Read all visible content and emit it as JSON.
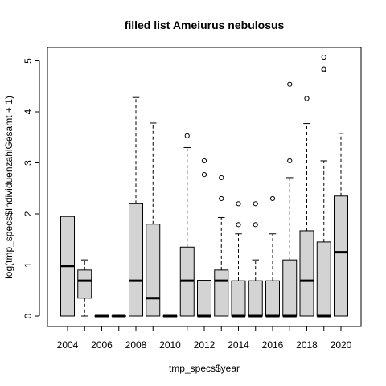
{
  "chart_data": {
    "type": "boxplot",
    "title": "filled list Ameiurus nebulosus",
    "xlabel": "tmp_specs$year",
    "ylabel": "log(tmp_specs$IndividuenzahlGesamt + 1)",
    "y_ticks": [
      0,
      1,
      2,
      3,
      4,
      5
    ],
    "x_tick_labels": [
      "2004",
      "2006",
      "2008",
      "2010",
      "2012",
      "2014",
      "2016",
      "2018",
      "2020"
    ],
    "ylim": [
      -0.2,
      5.3
    ],
    "box_fill": "#d3d3d3",
    "boxes": [
      {
        "year": 2004,
        "q1": 0,
        "median": 0.98,
        "q3": 1.95,
        "whisker_low": 0,
        "whisker_high": 1.95,
        "outliers": []
      },
      {
        "year": 2005,
        "q1": 0.35,
        "median": 0.69,
        "q3": 0.9,
        "whisker_low": 0,
        "whisker_high": 1.1,
        "outliers": []
      },
      {
        "year": 2006,
        "q1": 0,
        "median": 0,
        "q3": 0,
        "whisker_low": 0,
        "whisker_high": 0,
        "outliers": []
      },
      {
        "year": 2007,
        "q1": 0,
        "median": 0,
        "q3": 0,
        "whisker_low": 0,
        "whisker_high": 0,
        "outliers": []
      },
      {
        "year": 2008,
        "q1": 0,
        "median": 0.69,
        "q3": 2.2,
        "whisker_low": 0,
        "whisker_high": 4.28,
        "outliers": []
      },
      {
        "year": 2009,
        "q1": 0,
        "median": 0.35,
        "q3": 1.8,
        "whisker_low": 0,
        "whisker_high": 3.78,
        "outliers": []
      },
      {
        "year": 2010,
        "q1": 0,
        "median": 0,
        "q3": 0,
        "whisker_low": 0,
        "whisker_high": 0,
        "outliers": []
      },
      {
        "year": 2011,
        "q1": 0,
        "median": 0.69,
        "q3": 1.35,
        "whisker_low": 0,
        "whisker_high": 3.3,
        "outliers": [
          3.53
        ]
      },
      {
        "year": 2012,
        "q1": 0,
        "median": 0,
        "q3": 0.7,
        "whisker_low": 0,
        "whisker_high": 0.7,
        "outliers": [
          2.77,
          3.04
        ]
      },
      {
        "year": 2013,
        "q1": 0,
        "median": 0.69,
        "q3": 0.9,
        "whisker_low": 0,
        "whisker_high": 1.93,
        "outliers": [
          2.3,
          2.71
        ]
      },
      {
        "year": 2014,
        "q1": 0,
        "median": 0,
        "q3": 0.69,
        "whisker_low": 0,
        "whisker_high": 1.61,
        "outliers": [
          1.79,
          2.2
        ]
      },
      {
        "year": 2015,
        "q1": 0,
        "median": 0,
        "q3": 0.69,
        "whisker_low": 0,
        "whisker_high": 1.1,
        "outliers": [
          1.79,
          2.2
        ]
      },
      {
        "year": 2016,
        "q1": 0,
        "median": 0,
        "q3": 0.69,
        "whisker_low": 0,
        "whisker_high": 1.61,
        "outliers": [
          2.3
        ]
      },
      {
        "year": 2017,
        "q1": 0,
        "median": 0,
        "q3": 1.1,
        "whisker_low": 0,
        "whisker_high": 2.71,
        "outliers": [
          3.04,
          4.54
        ]
      },
      {
        "year": 2018,
        "q1": 0,
        "median": 0.69,
        "q3": 1.67,
        "whisker_low": 0,
        "whisker_high": 3.77,
        "outliers": [
          4.26
        ]
      },
      {
        "year": 2019,
        "q1": 0,
        "median": 0,
        "q3": 1.45,
        "whisker_low": 0,
        "whisker_high": 3.04,
        "outliers": [
          4.82,
          4.84,
          5.07
        ]
      },
      {
        "year": 2020,
        "q1": 0,
        "median": 1.25,
        "q3": 2.35,
        "whisker_low": 0,
        "whisker_high": 3.58,
        "outliers": []
      }
    ]
  }
}
